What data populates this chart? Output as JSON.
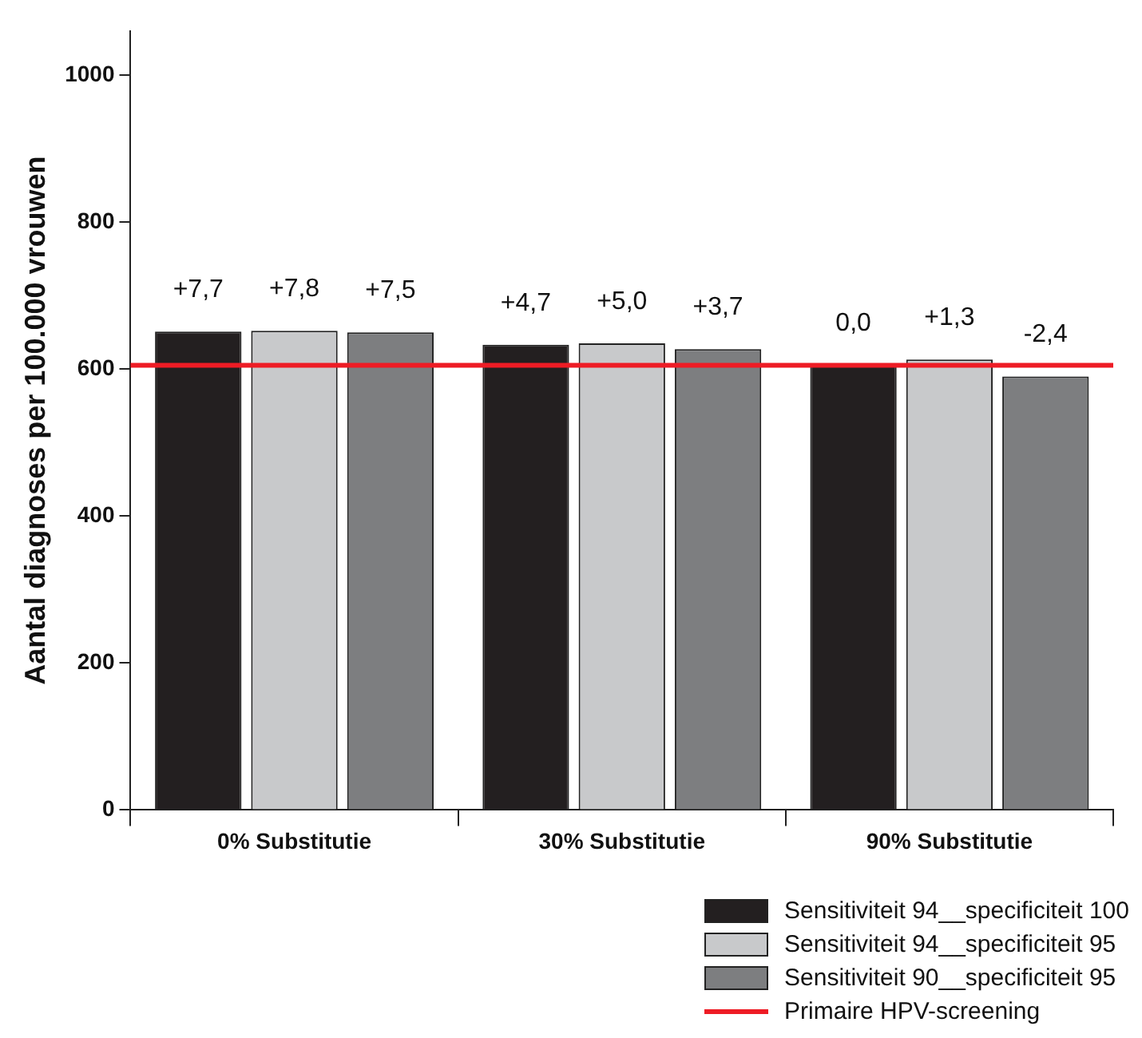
{
  "chart_data": {
    "type": "bar",
    "ylabel": "Aantal diagnoses per 100.000 vrouwen",
    "categories": [
      "0% Substitutie",
      "30% Substitutie",
      "90% Substitutie"
    ],
    "series": [
      {
        "name": "Sensitiviteit 94__specificiteit 100",
        "color": "#231f20",
        "values": [
          651,
          633,
          605
        ]
      },
      {
        "name": "Sensitiviteit 94__specificiteit 95",
        "color": "#c8c9cb",
        "values": [
          652,
          635,
          613
        ]
      },
      {
        "name": "Sensitiviteit 90__specificiteit 95",
        "color": "#7d7e80",
        "values": [
          650,
          627,
          590
        ]
      }
    ],
    "annotations": [
      "+7,7",
      "+7,8",
      "+7,5",
      "+4,7",
      "+5,0",
      "+3,7",
      "0,0",
      "+1,3",
      "-2,4"
    ],
    "ylim": [
      0,
      1060
    ],
    "yticks": [
      0,
      200,
      400,
      600,
      800,
      1000
    ],
    "grid": false,
    "legend": "bottom right",
    "ref_lines": [
      {
        "axis": "y",
        "value": 605,
        "label": "Primaire HPV-screening",
        "color": "#ee1c25",
        "line_style": "solid"
      }
    ]
  }
}
